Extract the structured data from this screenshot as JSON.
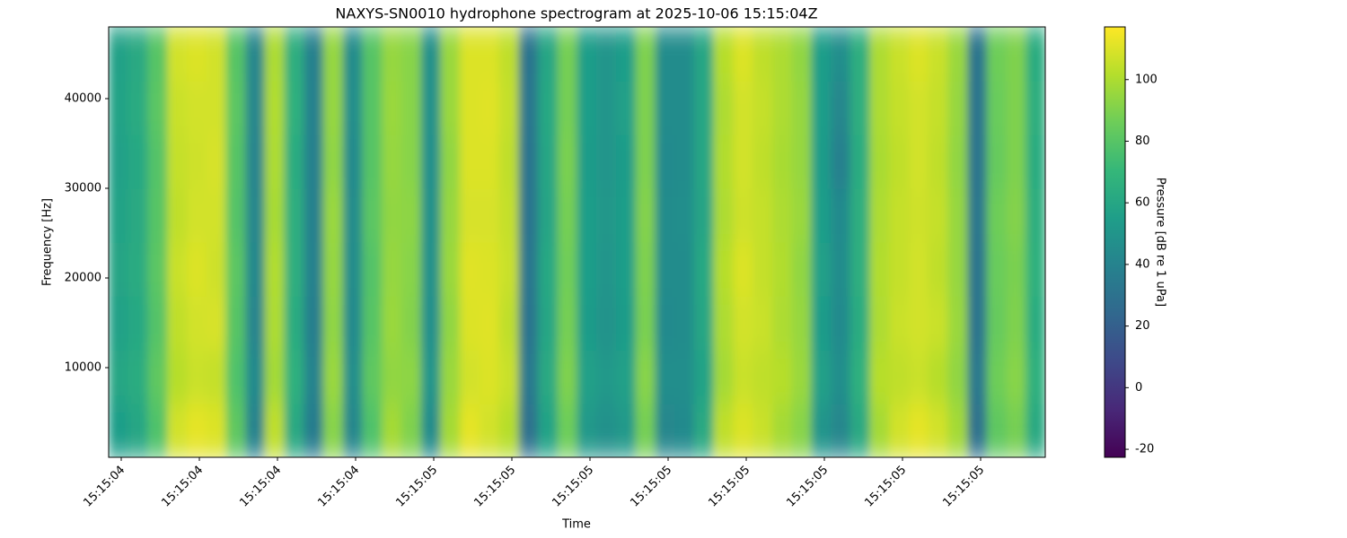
{
  "chart_data": {
    "type": "heatmap",
    "title": "NAXYS-SN0010 hydrophone spectrogram at 2025-10-06 15:15:04Z",
    "xlabel": "Time",
    "ylabel": "Frequency [Hz]",
    "colorbar_label": "Pressure [dB re 1 uPa]",
    "colormap": "viridis",
    "xtick_labels": [
      "15:15:04",
      "15:15:04",
      "15:15:04",
      "15:15:04",
      "15:15:05",
      "15:15:05",
      "15:15:05",
      "15:15:05",
      "15:15:05",
      "15:15:05",
      "15:15:05",
      "15:15:05"
    ],
    "ylim": [
      0,
      48000
    ],
    "yticks": [
      10000,
      20000,
      30000,
      40000
    ],
    "ybins": [
      0,
      6000,
      12000,
      18000,
      24000,
      30000,
      36000,
      42000,
      48000
    ],
    "clim": [
      -22.6,
      117.1
    ],
    "cticks": [
      -20,
      0,
      20,
      40,
      60,
      80,
      100
    ],
    "z": [
      [
        55,
        60,
        78,
        108,
        112,
        110,
        82,
        40,
        104,
        62,
        36,
        92,
        42,
        78,
        98,
        90,
        45,
        98,
        112,
        108,
        102,
        30,
        58,
        86,
        52,
        48,
        52,
        88,
        42,
        44,
        62,
        104,
        110,
        106,
        98,
        92,
        50,
        42,
        62,
        98,
        108,
        112,
        108,
        98,
        30,
        82,
        88,
        62
      ],
      [
        60,
        64,
        82,
        102,
        106,
        105,
        78,
        44,
        98,
        66,
        40,
        96,
        46,
        82,
        94,
        93,
        50,
        96,
        108,
        110,
        106,
        34,
        62,
        90,
        56,
        52,
        56,
        92,
        46,
        46,
        58,
        98,
        106,
        104,
        102,
        96,
        56,
        46,
        66,
        102,
        104,
        106,
        102,
        94,
        34,
        86,
        92,
        66
      ],
      [
        57,
        61,
        79,
        104,
        108,
        109,
        80,
        41,
        100,
        64,
        37,
        94,
        44,
        80,
        96,
        91,
        47,
        94,
        110,
        111,
        104,
        31,
        60,
        88,
        54,
        49,
        54,
        89,
        44,
        45,
        60,
        100,
        108,
        106,
        100,
        95,
        54,
        44,
        64,
        100,
        106,
        108,
        106,
        96,
        31,
        84,
        90,
        64
      ],
      [
        59,
        63,
        81,
        106,
        110,
        107,
        81,
        43,
        101,
        65,
        39,
        95,
        45,
        79,
        95,
        92,
        48,
        96,
        111,
        110,
        106,
        33,
        61,
        87,
        55,
        50,
        55,
        90,
        45,
        45,
        61,
        102,
        110,
        105,
        101,
        94,
        56,
        45,
        65,
        101,
        105,
        108,
        104,
        95,
        32,
        85,
        89,
        66
      ],
      [
        58,
        62,
        80,
        104,
        108,
        108,
        79,
        42,
        99,
        65,
        38,
        96,
        45,
        81,
        94,
        93,
        48,
        95,
        109,
        109,
        105,
        32,
        59,
        88,
        55,
        51,
        55,
        91,
        45,
        46,
        59,
        100,
        107,
        105,
        100,
        96,
        55,
        44,
        65,
        100,
        105,
        107,
        105,
        95,
        33,
        86,
        91,
        65
      ],
      [
        56,
        61,
        79,
        105,
        107,
        109,
        80,
        41,
        100,
        64,
        38,
        94,
        44,
        80,
        95,
        92,
        47,
        94,
        110,
        110,
        104,
        31,
        60,
        89,
        54,
        50,
        54,
        90,
        44,
        45,
        60,
        101,
        108,
        104,
        99,
        95,
        54,
        38,
        64,
        99,
        104,
        108,
        104,
        94,
        32,
        84,
        90,
        64
      ],
      [
        58,
        63,
        81,
        106,
        108,
        108,
        81,
        42,
        101,
        66,
        39,
        95,
        46,
        80,
        96,
        92,
        48,
        96,
        110,
        111,
        105,
        33,
        61,
        88,
        55,
        50,
        56,
        90,
        45,
        45,
        60,
        100,
        108,
        105,
        100,
        95,
        55,
        42,
        65,
        100,
        105,
        108,
        105,
        95,
        32,
        85,
        90,
        65
      ],
      [
        57,
        62,
        80,
        108,
        110,
        108,
        80,
        42,
        100,
        65,
        38,
        95,
        45,
        80,
        95,
        92,
        48,
        96,
        110,
        110,
        104,
        32,
        60,
        88,
        55,
        50,
        55,
        90,
        45,
        45,
        60,
        102,
        110,
        104,
        100,
        94,
        55,
        46,
        65,
        100,
        106,
        110,
        106,
        96,
        32,
        86,
        90,
        64
      ]
    ]
  }
}
